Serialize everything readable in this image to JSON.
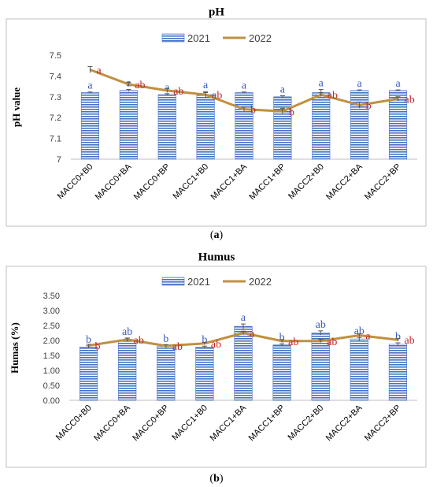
{
  "figure": {
    "caption_a": "a",
    "caption_b": "b"
  },
  "colors": {
    "bar_fill": "#ffffff",
    "bar_stripe": "#4472c4",
    "line_2022": "#c09040",
    "label_2021": "#3b5bbf",
    "label_2022": "#c0272d",
    "frame": "#bfbfbf"
  },
  "chart_data": [
    {
      "type": "bar",
      "title": "pH",
      "ylabel": "pH value",
      "xlabel": "",
      "categories": [
        "MACC0+B0",
        "MACC0+BA",
        "MACC0+BP",
        "MACC1+B0",
        "MACC1+BA",
        "MACC1+BP",
        "MACC2+B0",
        "MACC2+BA",
        "MACC2+BP"
      ],
      "ylim": [
        7,
        7.5
      ],
      "yticks": [
        "7",
        "7.1",
        "7.2",
        "7.3",
        "7.4",
        "7.5"
      ],
      "ytick_values": [
        7,
        7.1,
        7.2,
        7.3,
        7.4,
        7.5
      ],
      "legend_position": "top-center",
      "series": [
        {
          "name": "2021",
          "kind": "bar",
          "values": [
            7.32,
            7.33,
            7.31,
            7.31,
            7.32,
            7.3,
            7.32,
            7.33,
            7.33
          ],
          "errors": [
            0.003,
            0.005,
            0.005,
            0.015,
            0.003,
            0.005,
            0.015,
            0.003,
            0.003
          ],
          "letters": [
            "a",
            "a",
            "a",
            "a",
            "a",
            "a",
            "a",
            "a",
            "a"
          ]
        },
        {
          "name": "2022",
          "kind": "line",
          "values": [
            7.43,
            7.36,
            7.33,
            7.31,
            7.24,
            7.23,
            7.31,
            7.26,
            7.29
          ],
          "errors": [
            0.015,
            0.01,
            0.01,
            0.01,
            0.01,
            0.015,
            0.01,
            0.015,
            0.01
          ],
          "letters": [
            "a",
            "ab",
            "ab",
            "ab",
            "b",
            "b",
            "ab",
            "b",
            "ab"
          ]
        }
      ]
    },
    {
      "type": "bar",
      "title": "Humus",
      "ylabel": "Humas (%)",
      "xlabel": "",
      "categories": [
        "MACC0+B0",
        "MACC0+BA",
        "MACC0+BP",
        "MACC1+B0",
        "MACC1+BA",
        "MACC1+BP",
        "MACC2+B0",
        "MACC2+BA",
        "MACC2+BP"
      ],
      "ylim": [
        0,
        3.5
      ],
      "yticks": [
        "0.00",
        "0.50",
        "1.00",
        "1.50",
        "2.00",
        "2.50",
        "3.00",
        "3.50"
      ],
      "ytick_values": [
        0,
        0.5,
        1,
        1.5,
        2,
        2.5,
        3,
        3.5
      ],
      "legend_position": "top-center",
      "series": [
        {
          "name": "2021",
          "kind": "bar",
          "values": [
            1.78,
            2.02,
            1.8,
            1.78,
            2.47,
            1.85,
            2.25,
            2.05,
            1.87
          ],
          "errors": [
            0.04,
            0.06,
            0.04,
            0.03,
            0.08,
            0.04,
            0.07,
            0.05,
            0.05
          ],
          "letters": [
            "b",
            "ab",
            "b",
            "b",
            "a",
            "b",
            "ab",
            "ab",
            "b"
          ]
        },
        {
          "name": "2022",
          "kind": "line",
          "values": [
            1.83,
            2.03,
            1.82,
            1.9,
            2.25,
            1.98,
            1.98,
            2.17,
            2.02
          ],
          "errors": [
            0.04,
            0.05,
            0.04,
            0.04,
            0.06,
            0.05,
            0.05,
            0.05,
            0.05
          ],
          "letters": [
            "b",
            "ab",
            "ab",
            "ab",
            "a",
            "ab",
            "ab",
            "a",
            "ab"
          ]
        }
      ]
    }
  ]
}
